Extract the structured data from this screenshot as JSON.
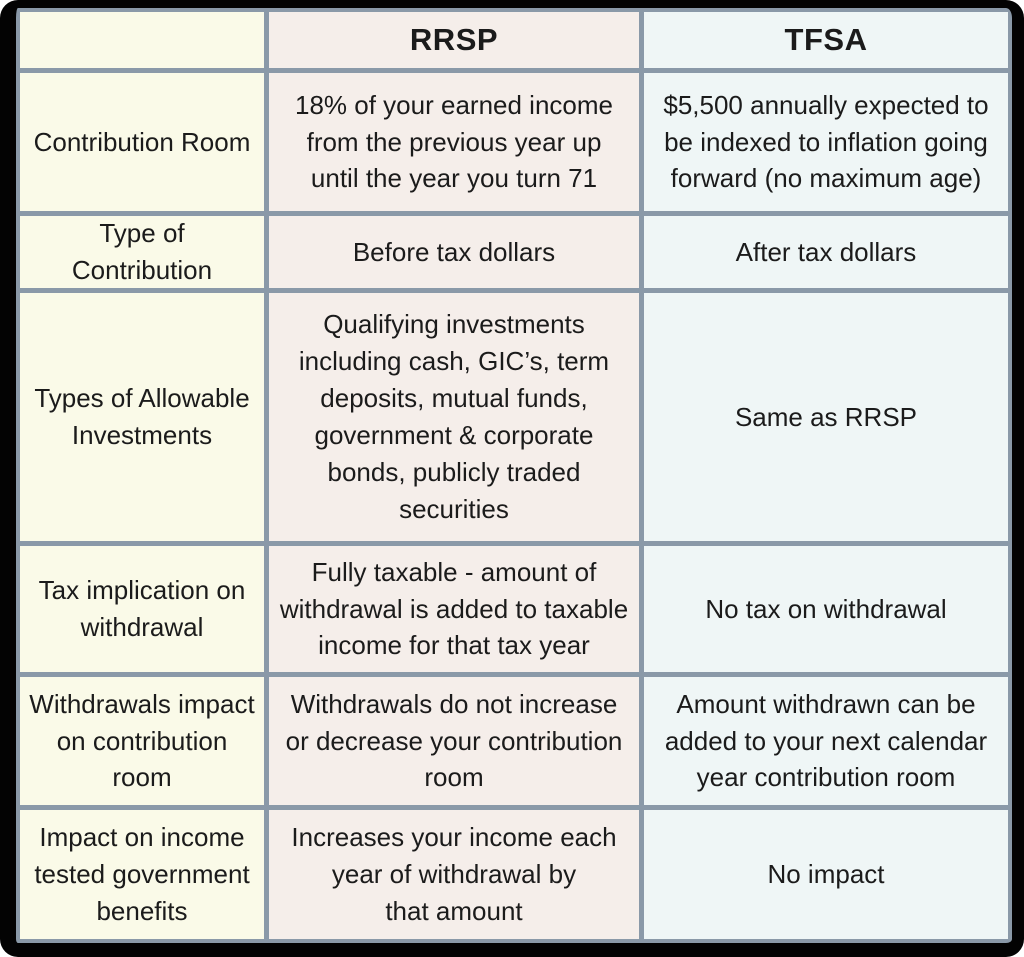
{
  "table": {
    "title_semantic": "RRSP vs TFSA comparison table",
    "columns": [
      {
        "key": "label",
        "header": ""
      },
      {
        "key": "rrsp",
        "header": "RRSP"
      },
      {
        "key": "tfsa",
        "header": "TFSA"
      }
    ],
    "rows": [
      {
        "label": "Contribution Room",
        "rrsp": "18% of your earned income\nfrom the previous year up\nuntil the year you turn 71",
        "tfsa": "$5,500 annually expected to\nbe indexed to inflation going\nforward (no maximum age)"
      },
      {
        "label": "Type of Contribution",
        "rrsp": "Before tax dollars",
        "tfsa": "After tax dollars"
      },
      {
        "label": "Types of Allowable\nInvestments",
        "rrsp": "Qualifying investments\nincluding  cash, GIC’s, term\ndeposits, mutual funds,\ngovernment & corporate\nbonds, publicly traded\nsecurities",
        "tfsa": "Same as RRSP"
      },
      {
        "label": "Tax implication on\nwithdrawal",
        "rrsp": "Fully taxable - amount of\nwithdrawal is added to taxable\nincome for that tax year",
        "tfsa": "No tax on withdrawal"
      },
      {
        "label": "Withdrawals impact\non contribution room",
        "rrsp": "Withdrawals do not increase\nor decrease your contribution\nroom",
        "tfsa": "Amount withdrawn can be\nadded to your next calendar\nyear contribution room"
      },
      {
        "label": "Impact on income\ntested government\nbenefits",
        "rrsp": "Increases your income each\nyear of withdrawal by\nthat amount",
        "tfsa": "No impact"
      }
    ],
    "colors": {
      "frame_border": "#030303",
      "gridline": "#8a99a8",
      "label_column_bg": "#fafae8",
      "rrsp_column_bg": "#f5eeea",
      "tfsa_column_bg": "#eff6f6",
      "text": "#1b1b1b"
    }
  }
}
